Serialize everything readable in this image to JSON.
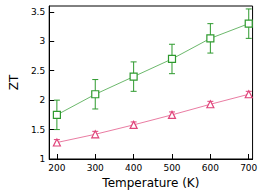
{
  "chart_data": {
    "type": "line",
    "x_label": "Temperature (K)",
    "y_label": "ZT",
    "xlim": [
      180,
      710
    ],
    "xticks": [
      200,
      300,
      400,
      500,
      600,
      700
    ],
    "ylim": [
      1,
      3.6
    ],
    "yticks": [
      1,
      1.5,
      2,
      2.5,
      3,
      3.5
    ],
    "grid": false,
    "series": [
      {
        "color": "#2e9a2e",
        "marker": "square",
        "line_style": "solid",
        "x": [
          200,
          300,
          400,
          500,
          600,
          700
        ],
        "values": [
          1.75,
          2.1,
          2.4,
          2.7,
          3.05,
          3.3
        ],
        "errors": [
          0.25,
          0.25,
          0.25,
          0.25,
          0.25,
          0.25
        ]
      },
      {
        "color": "#e0457b",
        "marker": "triangle",
        "line_style": "solid",
        "x": [
          200,
          300,
          400,
          500,
          600,
          700
        ],
        "values": [
          1.28,
          1.42,
          1.58,
          1.75,
          1.93,
          2.1
        ],
        "errors": [
          0.05,
          0.05,
          0.05,
          0.05,
          0.05,
          0.05
        ]
      }
    ]
  }
}
